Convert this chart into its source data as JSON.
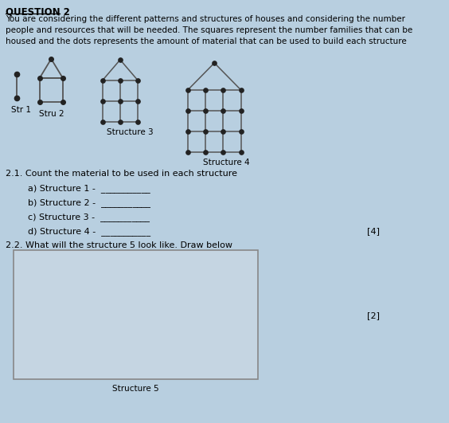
{
  "bg_color": "#b8cfe0",
  "title": "QUESTION 2",
  "intro_text": "You are considering the different patterns and structures of houses and considering the number\npeople and resources that will be needed. The squares represent the number families that can be\nhoused and the dots represents the amount of material that can be used to build each structure",
  "str1_label": "Str 1",
  "str2_label": "Stru 2",
  "str3_label": "Structure 3",
  "str4_label": "Structure 4",
  "q21_text": "2.1. Count the material to be used in each structure",
  "q21a": "        a) Structure 1 -  ___________",
  "q21b": "        b) Structure 2 -  ___________",
  "q21c": "        c) Structure 3 -  ___________",
  "q21d": "        d) Structure 4 -  ___________",
  "q22_text": "2.2. What will the structure 5 look like. Draw below",
  "marks4": "[4]",
  "marks2": "[2]",
  "str5_label": "Structure 5",
  "line_color": "#555555",
  "dot_color": "#222222",
  "box_face": "#c5d5e2"
}
